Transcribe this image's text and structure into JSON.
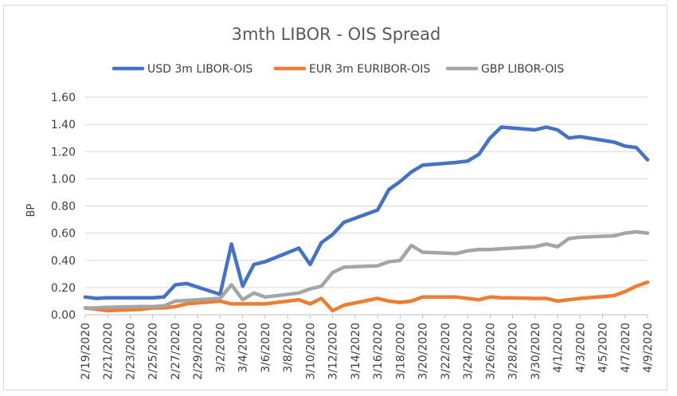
{
  "chart_data": {
    "type": "line",
    "title": "3mth LIBOR - OIS Spread",
    "ylabel": "BP",
    "xlabel": "",
    "ylim": [
      0,
      1.6
    ],
    "yticks": [
      "0.00",
      "0.20",
      "0.40",
      "0.60",
      "0.80",
      "1.00",
      "1.20",
      "1.40",
      "1.60"
    ],
    "grid": true,
    "legend_position": "top",
    "x": [
      "2/19/2020",
      "2/20/2020",
      "2/21/2020",
      "2/24/2020",
      "2/25/2020",
      "2/26/2020",
      "2/27/2020",
      "2/28/2020",
      "3/2/2020",
      "3/3/2020",
      "3/4/2020",
      "3/5/2020",
      "3/6/2020",
      "3/9/2020",
      "3/10/2020",
      "3/11/2020",
      "3/12/2020",
      "3/13/2020",
      "3/16/2020",
      "3/17/2020",
      "3/18/2020",
      "3/19/2020",
      "3/20/2020",
      "3/23/2020",
      "3/24/2020",
      "3/25/2020",
      "3/26/2020",
      "3/27/2020",
      "3/30/2020",
      "3/31/2020",
      "4/1/2020",
      "4/2/2020",
      "4/3/2020",
      "4/6/2020",
      "4/7/2020",
      "4/8/2020",
      "4/9/2020"
    ],
    "xtick_labels": [
      "2/19/2020",
      "2/21/2020",
      "2/23/2020",
      "2/25/2020",
      "2/27/2020",
      "2/29/2020",
      "3/2/2020",
      "3/4/2020",
      "3/6/2020",
      "3/8/2020",
      "3/10/2020",
      "3/12/2020",
      "3/14/2020",
      "3/16/2020",
      "3/18/2020",
      "3/20/2020",
      "3/22/2020",
      "3/24/2020",
      "3/26/2020",
      "3/28/2020",
      "3/30/2020",
      "4/1/2020",
      "4/3/2020",
      "4/5/2020",
      "4/7/2020",
      "4/9/2020"
    ],
    "series": [
      {
        "name": "USD 3m LIBOR-OIS",
        "color": "#4472c4",
        "values": [
          0.13,
          0.12,
          0.125,
          0.125,
          0.125,
          0.13,
          0.22,
          0.23,
          0.15,
          0.52,
          0.21,
          0.37,
          0.39,
          0.49,
          0.37,
          0.53,
          0.59,
          0.68,
          0.77,
          0.92,
          0.98,
          1.05,
          1.1,
          1.12,
          1.13,
          1.18,
          1.3,
          1.38,
          1.36,
          1.38,
          1.36,
          1.3,
          1.31,
          1.27,
          1.24,
          1.23,
          1.14
        ]
      },
      {
        "name": "EUR 3m EURIBOR-OIS",
        "color": "#ed7d31",
        "values": [
          0.05,
          0.04,
          0.03,
          0.04,
          0.05,
          0.05,
          0.06,
          0.08,
          0.1,
          0.08,
          0.08,
          0.08,
          0.08,
          0.11,
          0.08,
          0.12,
          0.03,
          0.07,
          0.12,
          0.1,
          0.09,
          0.1,
          0.13,
          0.13,
          0.12,
          0.11,
          0.13,
          0.125,
          0.12,
          0.12,
          0.1,
          0.11,
          0.12,
          0.14,
          0.17,
          0.21,
          0.24
        ]
      },
      {
        "name": "GBP LIBOR-OIS",
        "color": "#a5a5a5",
        "values": [
          0.05,
          0.05,
          0.055,
          0.06,
          0.06,
          0.065,
          0.1,
          0.105,
          0.12,
          0.22,
          0.11,
          0.16,
          0.13,
          0.16,
          0.19,
          0.21,
          0.31,
          0.35,
          0.36,
          0.39,
          0.4,
          0.51,
          0.46,
          0.45,
          0.47,
          0.48,
          0.48,
          0.485,
          0.5,
          0.52,
          0.5,
          0.56,
          0.57,
          0.58,
          0.6,
          0.61,
          0.6
        ]
      }
    ]
  }
}
